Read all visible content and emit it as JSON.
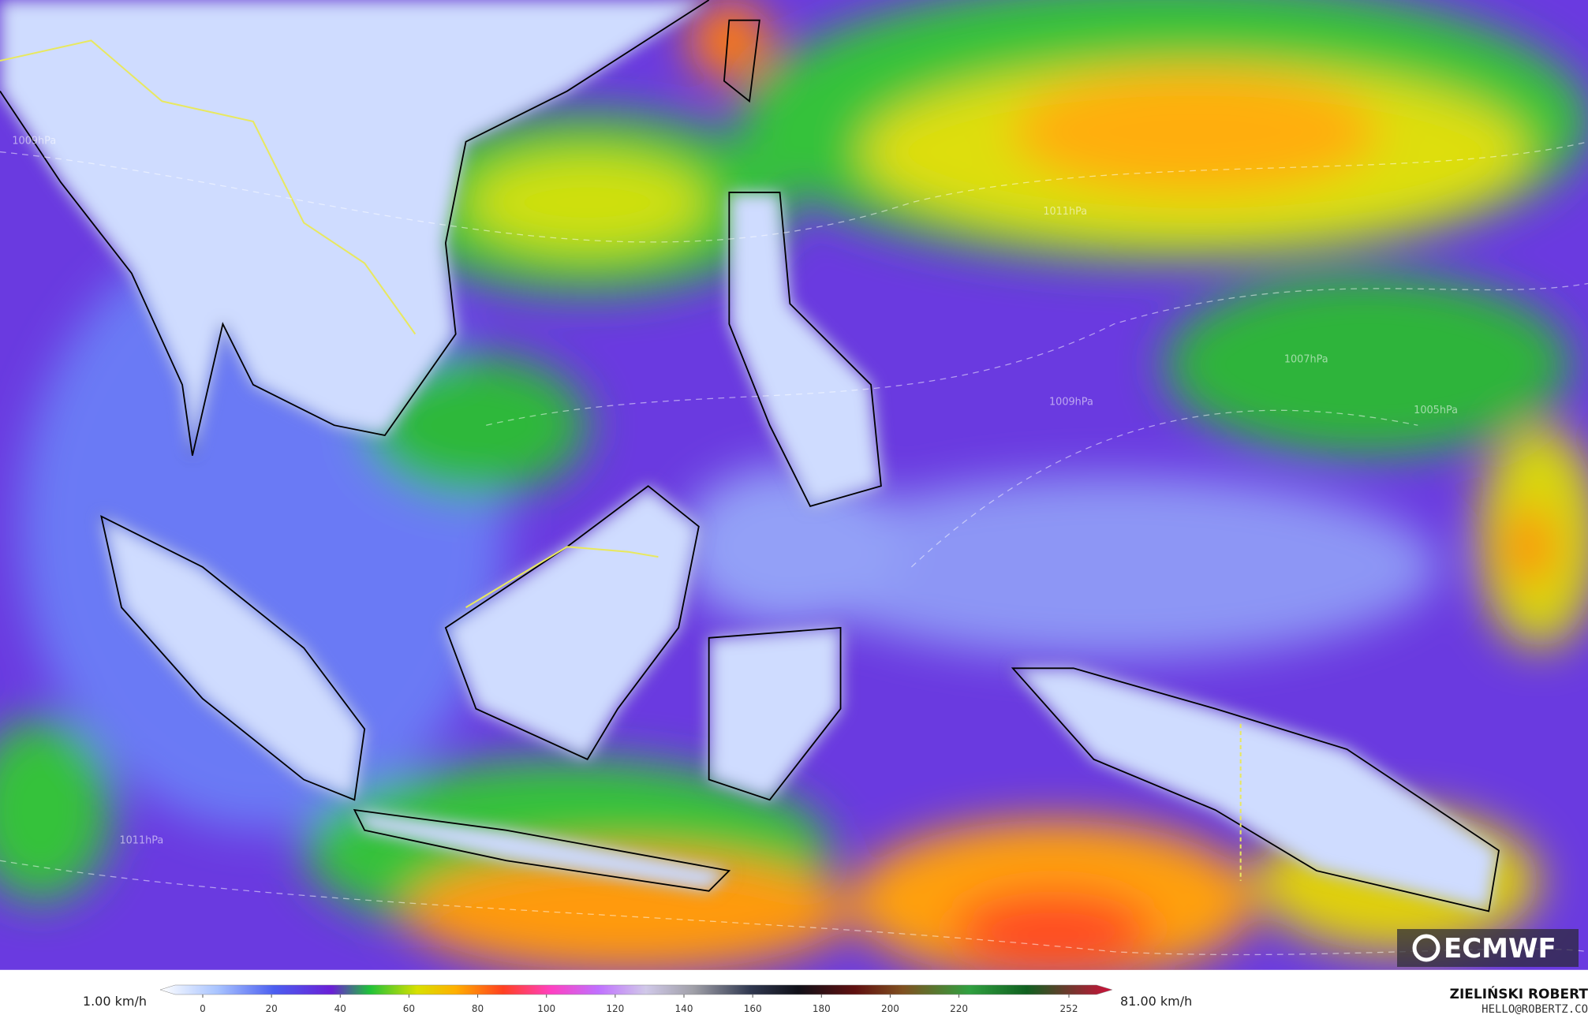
{
  "map": {
    "isobar_labels": [
      "1009hPa",
      "1011hPa",
      "1007hPa",
      "1005hPa",
      "1009hPa",
      "1011hPa"
    ]
  },
  "logo": "ECMWF",
  "legend": {
    "min_label": "1.00 km/h",
    "max_label": "81.00 km/h",
    "ticks": [
      0,
      20,
      40,
      60,
      80,
      100,
      120,
      140,
      160,
      180,
      200,
      220,
      252
    ]
  },
  "credit": {
    "name": "ZIELIŃSKI ROBERT",
    "email": "HELLO@ROBERTZ.CO"
  }
}
